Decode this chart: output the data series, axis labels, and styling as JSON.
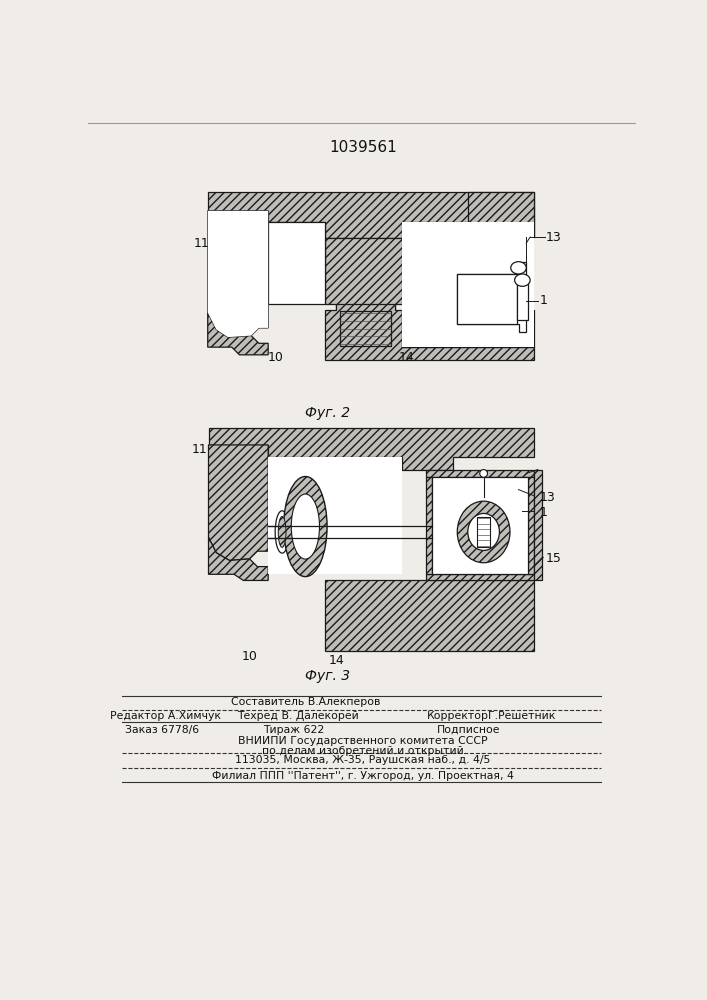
{
  "patent_number": "1039561",
  "fig2_label": "Фуг. 2",
  "fig3_label": "Фуг. 3",
  "header_line1": "Составитель В.Алекперов",
  "header_line2_col1": "Редактор А.Химчук",
  "header_line2_col2": "Техред В. Далекорей",
  "header_line2_col3": "КорректорГ.Решетник",
  "info_line1_col1": "Заказ 6778/6",
  "info_line1_col2": "Тираж 622",
  "info_line1_col3": "Подписное",
  "info_line2": "ВНИИПИ Государственного комитета СССР",
  "info_line3": "по делам изобретений и открытий",
  "info_line4": "113035, Москва, Ж-35, Раушская наб., д. 4/5",
  "info_line5": "Филиал ППП ''Патент'', г. Ужгород, ул. Проектная, 4",
  "bg_color": "#f0ede8",
  "hatch_fc": "#c0bdb8",
  "line_color": "#1a1a1a",
  "text_color": "#111111"
}
